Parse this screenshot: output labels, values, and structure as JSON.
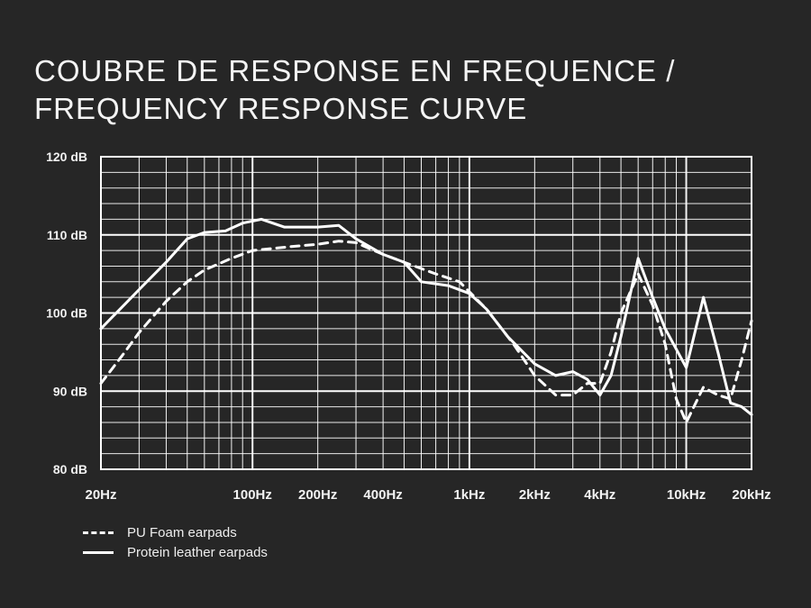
{
  "title_line1": "COUBRE DE RESPONSE EN FREQUENCE /",
  "title_line2": "FREQUENCY RESPONSE CURVE",
  "colors": {
    "background": "#262626",
    "foreground": "#ffffff"
  },
  "chart_data": {
    "type": "line",
    "xscale": "log",
    "xlim": [
      20,
      20000
    ],
    "ylim": [
      80,
      120
    ],
    "ylabel_unit": "dB",
    "grid": true,
    "xticks": [
      {
        "value": 20,
        "label": "20Hz"
      },
      {
        "value": 100,
        "label": "100Hz"
      },
      {
        "value": 200,
        "label": "200Hz"
      },
      {
        "value": 400,
        "label": "400Hz"
      },
      {
        "value": 1000,
        "label": "1kHz"
      },
      {
        "value": 2000,
        "label": "2kHz"
      },
      {
        "value": 4000,
        "label": "4kHz"
      },
      {
        "value": 10000,
        "label": "10kHz"
      },
      {
        "value": 20000,
        "label": "20kHz"
      }
    ],
    "yticks": [
      {
        "value": 80,
        "label": "80 dB"
      },
      {
        "value": 90,
        "label": "90 dB"
      },
      {
        "value": 100,
        "label": "100 dB"
      },
      {
        "value": 110,
        "label": "110 dB"
      },
      {
        "value": 120,
        "label": "120 dB"
      }
    ],
    "series": [
      {
        "name": "PU Foam earpads",
        "style": "dashed",
        "points": [
          [
            20,
            91
          ],
          [
            25,
            94.5
          ],
          [
            30,
            97.5
          ],
          [
            40,
            101.5
          ],
          [
            50,
            104
          ],
          [
            60,
            105.5
          ],
          [
            80,
            107
          ],
          [
            100,
            108
          ],
          [
            150,
            108.5
          ],
          [
            200,
            108.8
          ],
          [
            250,
            109.2
          ],
          [
            300,
            109
          ],
          [
            400,
            107.5
          ],
          [
            500,
            106.5
          ],
          [
            700,
            105
          ],
          [
            900,
            104
          ],
          [
            1200,
            100.5
          ],
          [
            1600,
            96
          ],
          [
            2000,
            92
          ],
          [
            2500,
            89.5
          ],
          [
            3000,
            89.5
          ],
          [
            3500,
            91
          ],
          [
            4000,
            91
          ],
          [
            4500,
            95
          ],
          [
            5000,
            100
          ],
          [
            6000,
            105
          ],
          [
            7000,
            101
          ],
          [
            8000,
            96
          ],
          [
            9000,
            89
          ],
          [
            10000,
            86
          ],
          [
            12000,
            90.5
          ],
          [
            14000,
            89.5
          ],
          [
            16000,
            89
          ],
          [
            18000,
            94
          ],
          [
            20000,
            99
          ]
        ]
      },
      {
        "name": "Protein leather earpads",
        "style": "solid",
        "points": [
          [
            20,
            98
          ],
          [
            30,
            103
          ],
          [
            40,
            106.5
          ],
          [
            50,
            109.5
          ],
          [
            60,
            110.3
          ],
          [
            75,
            110.5
          ],
          [
            90,
            111.5
          ],
          [
            110,
            112
          ],
          [
            140,
            111
          ],
          [
            200,
            111
          ],
          [
            250,
            111.2
          ],
          [
            300,
            109.5
          ],
          [
            400,
            107.5
          ],
          [
            500,
            106.5
          ],
          [
            600,
            104
          ],
          [
            800,
            103.5
          ],
          [
            1000,
            102.5
          ],
          [
            1200,
            100.5
          ],
          [
            1500,
            97
          ],
          [
            2000,
            93.5
          ],
          [
            2500,
            92
          ],
          [
            3000,
            92.5
          ],
          [
            3500,
            91.5
          ],
          [
            4000,
            89.5
          ],
          [
            4500,
            92
          ],
          [
            5000,
            97
          ],
          [
            6000,
            107
          ],
          [
            7000,
            102
          ],
          [
            8000,
            98
          ],
          [
            10000,
            93
          ],
          [
            12000,
            102
          ],
          [
            14000,
            95
          ],
          [
            16000,
            88.5
          ],
          [
            18000,
            88
          ],
          [
            20000,
            87
          ]
        ]
      }
    ],
    "legend": [
      {
        "label": "PU Foam earpads",
        "style": "dashed"
      },
      {
        "label": "Protein leather earpads",
        "style": "solid"
      }
    ],
    "legend_position": "bottom-left"
  }
}
